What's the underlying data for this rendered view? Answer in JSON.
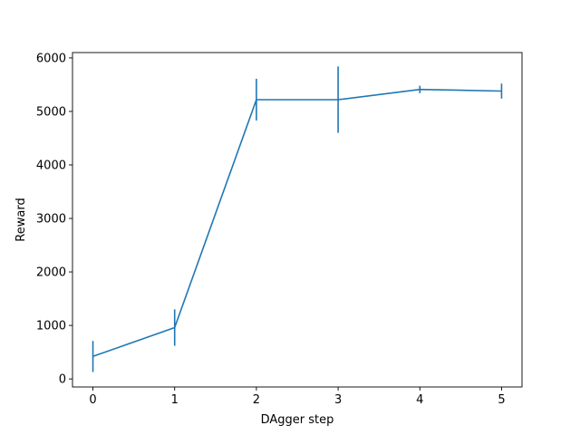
{
  "chart_data": {
    "type": "line",
    "title": "",
    "xlabel": "DAgger step",
    "ylabel": "Reward",
    "xlim": [
      -0.25,
      5.25
    ],
    "ylim": [
      -150,
      6100
    ],
    "x_ticks": [
      0,
      1,
      2,
      3,
      4,
      5
    ],
    "y_ticks": [
      0,
      1000,
      2000,
      3000,
      4000,
      5000,
      6000
    ],
    "grid": false,
    "legend": "none",
    "color": "#1f77b4",
    "series": [
      {
        "x": [
          0,
          1,
          2,
          3,
          4,
          5
        ],
        "y": [
          420,
          960,
          5220,
          5220,
          5410,
          5380
        ],
        "yerr": [
          290,
          340,
          390,
          620,
          70,
          140
        ]
      }
    ]
  }
}
